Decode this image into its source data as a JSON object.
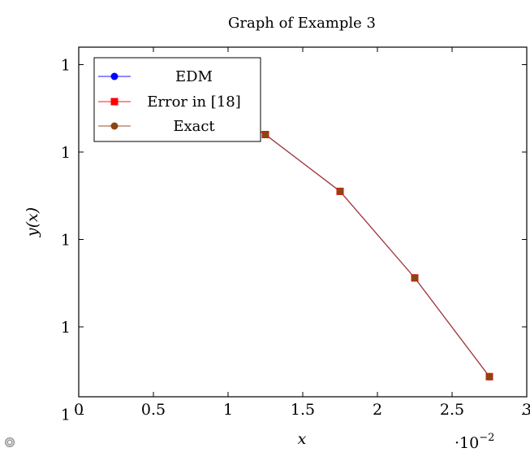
{
  "chart_data": {
    "type": "line",
    "title": "Graph of Example 3",
    "xlabel": "x",
    "ylabel": "y(x)",
    "x_scale_note": "·10",
    "x_scale_exponent": "−2",
    "xlim": [
      0,
      3
    ],
    "ylim": [
      0.99998,
      1.00002
    ],
    "x_ticks": [
      0,
      0.5,
      1,
      1.5,
      2,
      2.5,
      3
    ],
    "x_tick_labels": [
      "0",
      "0.5",
      "1",
      "1.5",
      "2",
      "2.5",
      "3"
    ],
    "y_ticks": [
      1.000018,
      1.000008,
      0.999998,
      0.999988,
      0.999978
    ],
    "y_tick_labels": [
      "1",
      "1",
      "1",
      "1",
      "1"
    ],
    "grid": false,
    "legend_position": "top-left",
    "series": [
      {
        "name": "EDM",
        "color": "#0000ff",
        "marker": "circle",
        "x": [
          0.25,
          0.75,
          1.25,
          1.75,
          2.25,
          2.75
        ],
        "y": [
          1.000018,
          1.000015,
          1.00001,
          1.0000035,
          0.9999936,
          0.9999823
        ]
      },
      {
        "name": "Error in [18]",
        "color": "#ff0000",
        "marker": "square",
        "x": [
          0.25,
          0.75,
          1.25,
          1.75,
          2.25,
          2.75
        ],
        "y": [
          1.000018,
          1.000015,
          1.00001,
          1.0000035,
          0.9999936,
          0.9999823
        ]
      },
      {
        "name": "Exact",
        "color": "#8b4513",
        "marker": "circle",
        "x": [
          0.25,
          0.75,
          1.25,
          1.75,
          2.25,
          2.75
        ],
        "y": [
          1.000018,
          1.000015,
          1.00001,
          1.0000035,
          0.9999936,
          0.9999823
        ]
      }
    ]
  },
  "icons": {
    "corner": "gear-icon"
  }
}
